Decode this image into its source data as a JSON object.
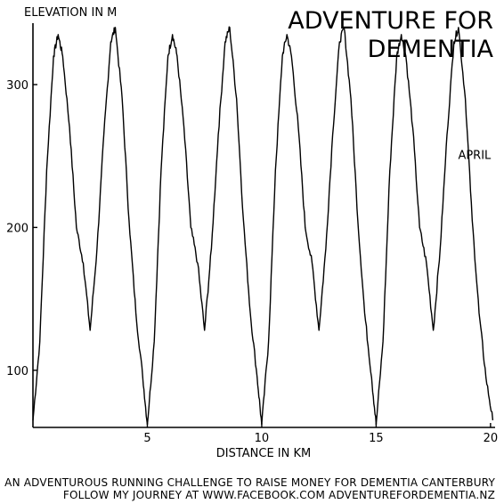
{
  "chart_data": {
    "type": "line",
    "title": "ADVENTURE FOR DEMENTIA",
    "title_lines": [
      "ADVENTURE FOR",
      "DEMENTIA"
    ],
    "xlabel": "DISTANCE IN KM",
    "ylabel": "ELEVATION IN M",
    "xlim": [
      0,
      20.2
    ],
    "ylim": [
      60,
      343
    ],
    "xticks": [
      5,
      10,
      15,
      20
    ],
    "yticks": [
      100,
      200,
      300
    ],
    "grid": false,
    "annotations": [
      {
        "text": "APRIL",
        "x": 19.3,
        "y": 248
      }
    ],
    "series": [
      {
        "x": [
          0,
          0.3,
          0.6,
          0.9,
          1.1,
          1.3,
          1.6,
          1.9,
          2.2,
          2.5,
          2.8,
          3.1,
          3.4,
          3.6,
          3.9,
          4.2,
          4.5,
          4.8,
          5.0,
          5.3,
          5.6,
          5.9,
          6.1,
          6.3,
          6.6,
          6.9,
          7.2,
          7.5,
          7.8,
          8.1,
          8.4,
          8.6,
          8.9,
          9.2,
          9.5,
          9.8,
          10.0,
          10.3,
          10.6,
          10.9,
          11.1,
          11.3,
          11.6,
          11.9,
          12.2,
          12.5,
          12.8,
          13.1,
          13.4,
          13.6,
          13.9,
          14.2,
          14.5,
          14.8,
          15.0,
          15.3,
          15.6,
          15.9,
          16.1,
          16.3,
          16.6,
          16.9,
          17.2,
          17.5,
          17.8,
          18.1,
          18.4,
          18.6,
          18.9,
          19.2,
          19.5,
          19.8,
          20.1
        ],
        "y": [
          65,
          120,
          240,
          320,
          335,
          320,
          270,
          200,
          175,
          128,
          185,
          265,
          330,
          340,
          290,
          205,
          140,
          95,
          62,
          120,
          240,
          320,
          335,
          320,
          270,
          200,
          175,
          128,
          185,
          265,
          330,
          340,
          290,
          205,
          140,
          95,
          62,
          120,
          240,
          320,
          335,
          320,
          270,
          200,
          175,
          128,
          185,
          265,
          330,
          340,
          290,
          205,
          140,
          95,
          62,
          120,
          240,
          320,
          335,
          320,
          270,
          200,
          175,
          128,
          185,
          265,
          330,
          340,
          290,
          205,
          140,
          95,
          65
        ]
      }
    ]
  },
  "footer": {
    "line1": "AN ADVENTUROUS RUNNING CHALLENGE TO RAISE MONEY FOR DEMENTIA CANTERBURY",
    "line2": "FOLLOW MY JOURNEY AT WWW.FACEBOOK.COM ADVENTUREFORDEMENTIA.NZ"
  }
}
